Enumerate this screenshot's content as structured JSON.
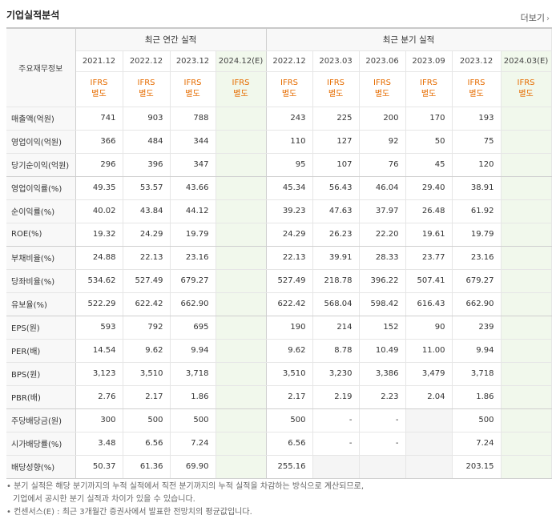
{
  "section": {
    "title": "기업실적분석",
    "more": "더보기"
  },
  "table": {
    "corner_label": "주요재무정보",
    "group_annual": "최근 연간 실적",
    "group_quarter": "최근 분기 실적",
    "years": [
      "2021.12",
      "2022.12",
      "2023.12",
      "2024.12(E)",
      "2022.12",
      "2023.03",
      "2023.06",
      "2023.09",
      "2023.12",
      "2024.03(E)"
    ],
    "ifrs": [
      "IFRS",
      "IFRS",
      "IFRS",
      "IFRS",
      "IFRS",
      "IFRS",
      "IFRS",
      "IFRS",
      "IFRS",
      "IFRS"
    ],
    "basis": [
      "별도",
      "별도",
      "별도",
      "별도",
      "별도",
      "별도",
      "별도",
      "별도",
      "별도",
      "별도"
    ],
    "rows": [
      {
        "label": "매출액(억원)",
        "values": [
          "741",
          "903",
          "788",
          "",
          "243",
          "225",
          "200",
          "170",
          "193",
          ""
        ]
      },
      {
        "label": "영업이익(억원)",
        "values": [
          "366",
          "484",
          "344",
          "",
          "110",
          "127",
          "92",
          "50",
          "75",
          ""
        ]
      },
      {
        "label": "당기순이익(억원)",
        "values": [
          "296",
          "396",
          "347",
          "",
          "95",
          "107",
          "76",
          "45",
          "120",
          ""
        ]
      },
      {
        "label": "영업이익률(%)",
        "values": [
          "49.35",
          "53.57",
          "43.66",
          "",
          "45.34",
          "56.43",
          "46.04",
          "29.40",
          "38.91",
          ""
        ]
      },
      {
        "label": "순이익률(%)",
        "values": [
          "40.02",
          "43.84",
          "44.12",
          "",
          "39.23",
          "47.63",
          "37.97",
          "26.48",
          "61.92",
          ""
        ]
      },
      {
        "label": "ROE(%)",
        "values": [
          "19.32",
          "24.29",
          "19.79",
          "",
          "24.29",
          "26.23",
          "22.20",
          "19.61",
          "19.79",
          ""
        ]
      },
      {
        "label": "부채비율(%)",
        "values": [
          "24.88",
          "22.13",
          "23.16",
          "",
          "22.13",
          "39.91",
          "28.33",
          "23.77",
          "23.16",
          ""
        ]
      },
      {
        "label": "당좌비율(%)",
        "values": [
          "534.62",
          "527.49",
          "679.27",
          "",
          "527.49",
          "218.78",
          "396.22",
          "507.41",
          "679.27",
          ""
        ]
      },
      {
        "label": "유보율(%)",
        "values": [
          "522.29",
          "622.42",
          "662.90",
          "",
          "622.42",
          "568.04",
          "598.42",
          "616.43",
          "662.90",
          ""
        ]
      },
      {
        "label": "EPS(원)",
        "values": [
          "593",
          "792",
          "695",
          "",
          "190",
          "214",
          "152",
          "90",
          "239",
          ""
        ]
      },
      {
        "label": "PER(배)",
        "values": [
          "14.54",
          "9.62",
          "9.94",
          "",
          "9.62",
          "8.78",
          "10.49",
          "11.00",
          "9.94",
          ""
        ]
      },
      {
        "label": "BPS(원)",
        "values": [
          "3,123",
          "3,510",
          "3,718",
          "",
          "3,510",
          "3,230",
          "3,386",
          "3,479",
          "3,718",
          ""
        ]
      },
      {
        "label": "PBR(배)",
        "values": [
          "2.76",
          "2.17",
          "1.86",
          "",
          "2.17",
          "2.19",
          "2.23",
          "2.04",
          "1.86",
          ""
        ]
      },
      {
        "label": "주당배당금(원)",
        "values": [
          "300",
          "500",
          "500",
          "",
          "500",
          "-",
          "-",
          "",
          "500",
          ""
        ]
      },
      {
        "label": "시가배당률(%)",
        "values": [
          "3.48",
          "6.56",
          "7.24",
          "",
          "6.56",
          "-",
          "-",
          "",
          "7.24",
          ""
        ]
      },
      {
        "label": "배당성향(%)",
        "values": [
          "50.37",
          "61.36",
          "69.90",
          "",
          "255.16",
          "",
          "",
          "",
          "203.15",
          ""
        ]
      }
    ]
  },
  "notes": {
    "line1": "분기 실적은 해당 분기까지의 누적 실적에서 직전 분기까지의 누적 실적을 차감하는 방식으로 계산되므로,",
    "line2": "기업에서 공시한 분기 실적과 차이가 있을 수 있습니다.",
    "line3": "컨센서스(E) : 최근 3개월간 증권사에서 발표한 전망치의 평균값입니다."
  },
  "colors": {
    "ifrs": "#e66c00",
    "estimate_bg": "#f1f8ec",
    "header_bg": "#f8f8f8"
  }
}
